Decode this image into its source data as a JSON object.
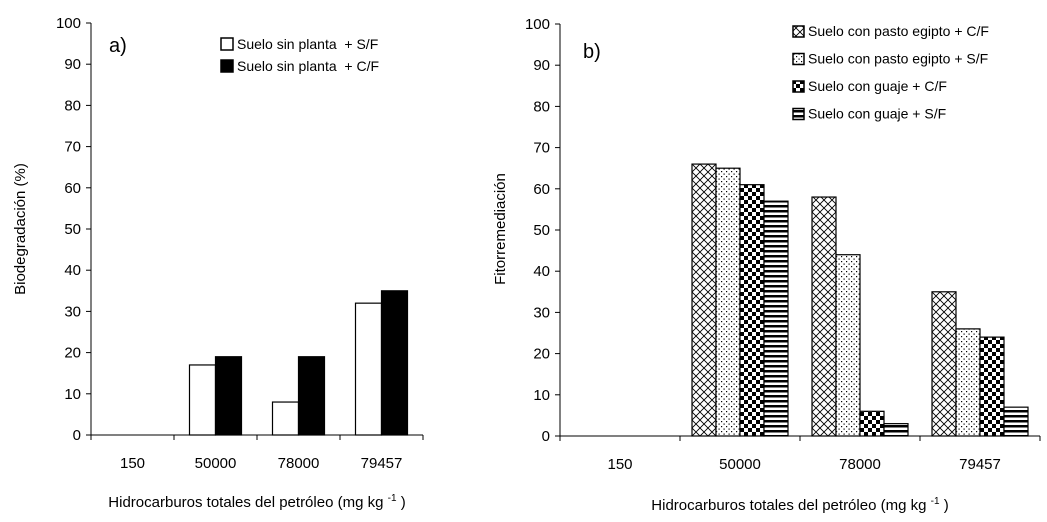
{
  "chart_data": [
    {
      "type": "bar",
      "panel_label": "a)",
      "categories": [
        "150",
        "50000",
        "78000",
        "79457"
      ],
      "series": [
        {
          "name": "Suelo sin planta  + S/F",
          "fill": "white",
          "values": [
            0,
            17,
            8,
            32
          ]
        },
        {
          "name": "Suelo sin planta  + C/F",
          "fill": "black",
          "values": [
            0,
            19,
            19,
            35
          ]
        }
      ],
      "xlabel_main": "Hidrocarburos totales del petróleo (mg kg",
      "xlabel_sup": "-1",
      "xlabel_close": ")",
      "ylabel": "Biodegradación (%)",
      "ylim": [
        0,
        100
      ],
      "yticks": [
        "0",
        "10",
        "20",
        "30",
        "40",
        "50",
        "60",
        "70",
        "80",
        "90",
        "100"
      ],
      "grid": false,
      "legend_position": "top-right"
    },
    {
      "type": "bar",
      "panel_label": "b)",
      "categories": [
        "150",
        "50000",
        "78000",
        "79457"
      ],
      "series": [
        {
          "name": "Suelo con pasto egipto + C/F",
          "fill": "crosshatch",
          "values": [
            0,
            66,
            58,
            35
          ]
        },
        {
          "name": "Suelo con pasto egipto + S/F",
          "fill": "dots",
          "values": [
            0,
            65,
            44,
            26
          ]
        },
        {
          "name": "Suelo con guaje + C/F",
          "fill": "checker",
          "values": [
            0,
            61,
            6,
            24
          ]
        },
        {
          "name": "Suelo con guaje + S/F",
          "fill": "hstripes",
          "values": [
            0,
            57,
            3,
            7
          ]
        }
      ],
      "xlabel_main": "Hidrocarburos totales del petróleo (mg kg",
      "xlabel_sup": "-1",
      "xlabel_close": ")",
      "ylabel": "Fitorremediación",
      "ylim": [
        0,
        100
      ],
      "yticks": [
        "0",
        "10",
        "20",
        "30",
        "40",
        "50",
        "60",
        "70",
        "80",
        "90",
        "100"
      ],
      "grid": false,
      "legend_position": "top-right"
    }
  ]
}
